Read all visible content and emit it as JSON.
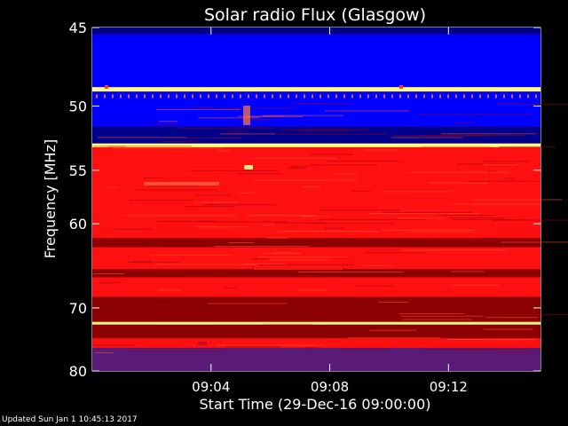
{
  "chart_data": {
    "type": "heatmap",
    "title": "Solar radio Flux (Glasgow)",
    "xlabel": "Start Time (29-Dec-16 09:00:00)",
    "ylabel": "Frequency [MHz]",
    "x_range_minutes": [
      0,
      15.1
    ],
    "x_ticks": [
      {
        "minute": 4,
        "label": "09:04"
      },
      {
        "minute": 8,
        "label": "09:08"
      },
      {
        "minute": 12,
        "label": "09:12"
      }
    ],
    "y_range_mhz": [
      45,
      80
    ],
    "y_scale": "reciprocal",
    "y_ticks": [
      {
        "mhz": 45,
        "label": "45"
      },
      {
        "mhz": 50,
        "label": "50"
      },
      {
        "mhz": 55,
        "label": "55"
      },
      {
        "mhz": 60,
        "label": "60"
      },
      {
        "mhz": 70,
        "label": "70"
      },
      {
        "mhz": 80,
        "label": "80"
      }
    ],
    "colors": {
      "low": "#00008b",
      "mid_blue": "#0000ff",
      "mid": "#ff1010",
      "dark_red": "#8b0000",
      "high": "#ffff80",
      "purple": "#5a1a78",
      "background": "#000000"
    },
    "bands": [
      {
        "f_start": 45.0,
        "f_end": 45.4,
        "level": "low"
      },
      {
        "f_start": 45.4,
        "f_end": 48.7,
        "level": "mid_blue"
      },
      {
        "f_start": 48.7,
        "f_end": 49.0,
        "level": "high"
      },
      {
        "f_start": 49.0,
        "f_end": 51.5,
        "level": "mid_blue"
      },
      {
        "f_start": 51.5,
        "f_end": 52.8,
        "level": "low"
      },
      {
        "f_start": 52.8,
        "f_end": 53.1,
        "level": "high"
      },
      {
        "f_start": 53.1,
        "f_end": 61.5,
        "level": "mid"
      },
      {
        "f_start": 61.5,
        "f_end": 62.5,
        "level": "dark_red"
      },
      {
        "f_start": 62.5,
        "f_end": 65.0,
        "level": "mid"
      },
      {
        "f_start": 65.0,
        "f_end": 66.0,
        "level": "dark_red"
      },
      {
        "f_start": 66.0,
        "f_end": 68.5,
        "level": "mid"
      },
      {
        "f_start": 68.5,
        "f_end": 72.0,
        "level": "dark_red"
      },
      {
        "f_start": 72.0,
        "f_end": 72.4,
        "level": "high"
      },
      {
        "f_start": 72.4,
        "f_end": 74.5,
        "level": "dark_red"
      },
      {
        "f_start": 74.5,
        "f_end": 76.0,
        "level": "mid"
      },
      {
        "f_start": 76.0,
        "f_end": 80.0,
        "level": "purple"
      }
    ]
  },
  "footer": {
    "updated": "Updated Sun Jan  1 10:45:13 2017"
  }
}
